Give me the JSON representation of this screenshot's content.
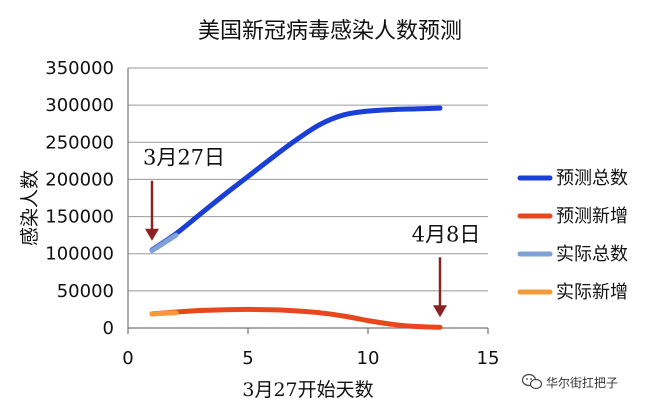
{
  "chart_data": {
    "type": "line",
    "title": "美国新冠病毒感染人数预测",
    "xlabel": "3月27开始天数",
    "ylabel": "感染人数",
    "xlim": [
      0,
      15
    ],
    "ylim": [
      0,
      350000
    ],
    "x_ticks": [
      0,
      5,
      10,
      15
    ],
    "y_ticks": [
      0,
      50000,
      100000,
      150000,
      200000,
      250000,
      300000,
      350000
    ],
    "grid": "horizontal",
    "legend_position": "right",
    "series": [
      {
        "name": "预测总数",
        "color": "#1a3fd6",
        "x": [
          1,
          2,
          3,
          4,
          5,
          6,
          7,
          8,
          9,
          10,
          11,
          12,
          13
        ],
        "values": [
          105000,
          127000,
          153000,
          179000,
          204000,
          229000,
          253000,
          274000,
          287000,
          292000,
          294000,
          295000,
          296000
        ]
      },
      {
        "name": "预测新增",
        "color": "#e8471e",
        "x": [
          1,
          2,
          3,
          4,
          5,
          6,
          7,
          8,
          9,
          10,
          11,
          12,
          13
        ],
        "values": [
          19000,
          21500,
          23500,
          24500,
          25000,
          24500,
          23000,
          20500,
          16000,
          10000,
          5000,
          2000,
          1000
        ]
      },
      {
        "name": "实际总数",
        "color": "#7ea1d8",
        "x": [
          1,
          2
        ],
        "values": [
          104000,
          125000
        ]
      },
      {
        "name": "实际新增",
        "color": "#f39a3c",
        "x": [
          1,
          2
        ],
        "values": [
          19000,
          20500
        ]
      }
    ],
    "annotations": [
      {
        "text": "3月27日",
        "x": 1,
        "y": 104000
      },
      {
        "text": "4月8日",
        "x": 13,
        "y": 1000
      }
    ]
  },
  "watermark": {
    "text": "华尔街扛把子",
    "icon": "wechat-icon"
  }
}
